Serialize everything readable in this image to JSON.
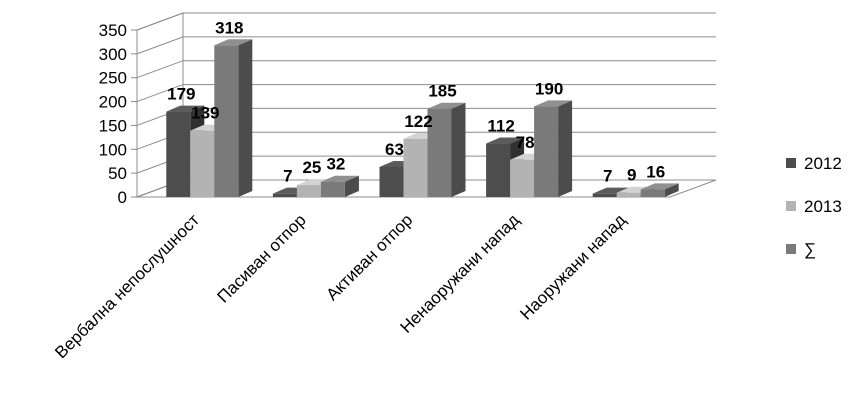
{
  "chart_data": {
    "type": "bar",
    "categories": [
      "Вербална непослушност",
      "Пасиван отпор",
      "Активан отпор",
      "Ненаоружани напад",
      "Наоружани напад"
    ],
    "series": [
      {
        "name": "2012",
        "values": [
          179,
          7,
          63,
          112,
          7
        ],
        "color": "#4d4d4d"
      },
      {
        "name": "2013",
        "values": [
          139,
          25,
          122,
          78,
          9
        ],
        "color": "#b3b3b3"
      },
      {
        "name": "∑",
        "values": [
          318,
          32,
          185,
          190,
          16
        ],
        "color": "#7a7a7a"
      }
    ],
    "ylim": [
      0,
      350
    ],
    "yticks": [
      0,
      50,
      100,
      150,
      200,
      250,
      300,
      350
    ],
    "grid": true,
    "legend": "right",
    "title": "",
    "xlabel": "",
    "ylabel": ""
  }
}
